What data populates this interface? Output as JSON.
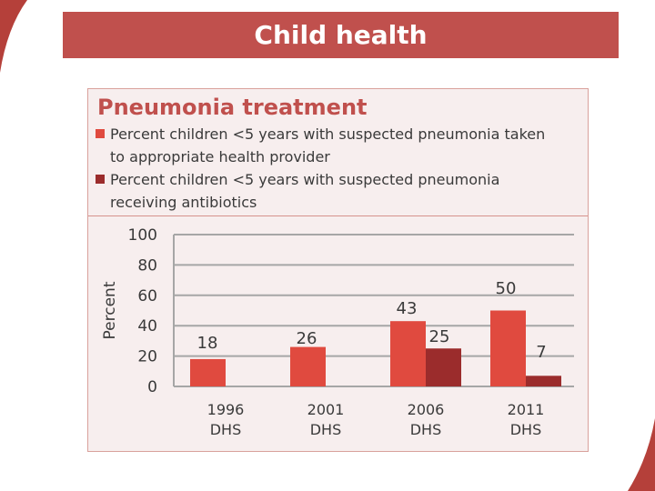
{
  "slide": {
    "title": "Child health"
  },
  "colors": {
    "banner": "#c0504d",
    "series_light": "#e04a3f",
    "series_dark": "#9b2c2c"
  },
  "chart_data": {
    "type": "bar",
    "title": "Pneumonia treatment",
    "categories": [
      "1996\nDHS",
      "2001\nDHS",
      "2006\nDHS",
      "2011\nDHS"
    ],
    "category_lines": [
      [
        "1996",
        "DHS"
      ],
      [
        "2001",
        "DHS"
      ],
      [
        "2006",
        "DHS"
      ],
      [
        "2011",
        "DHS"
      ]
    ],
    "series": [
      {
        "name": "Percent children <5 years with suspected pneumonia taken to appropriate health provider",
        "values": [
          18,
          26,
          43,
          50
        ],
        "labels": [
          "18",
          "26",
          "43",
          "50"
        ]
      },
      {
        "name": "Percent children <5 years with suspected pneumonia receiving antibiotics",
        "values": [
          null,
          null,
          25,
          7
        ],
        "labels": [
          "",
          "",
          "25",
          "7"
        ]
      }
    ],
    "legend": [
      {
        "line1": "Percent children <5 years with suspected pneumonia taken",
        "line2": "to appropriate health provider"
      },
      {
        "line1": "Percent children <5 years with suspected pneumonia",
        "line2": "receiving antibiotics"
      }
    ],
    "ylabel": "Percent",
    "xlabel": "",
    "ylim": [
      0,
      100
    ],
    "yticks": [
      0,
      20,
      40,
      60,
      80,
      100
    ],
    "ytick_labels": [
      "0",
      "20",
      "40",
      "60",
      "80",
      "100"
    ],
    "grid": true
  }
}
